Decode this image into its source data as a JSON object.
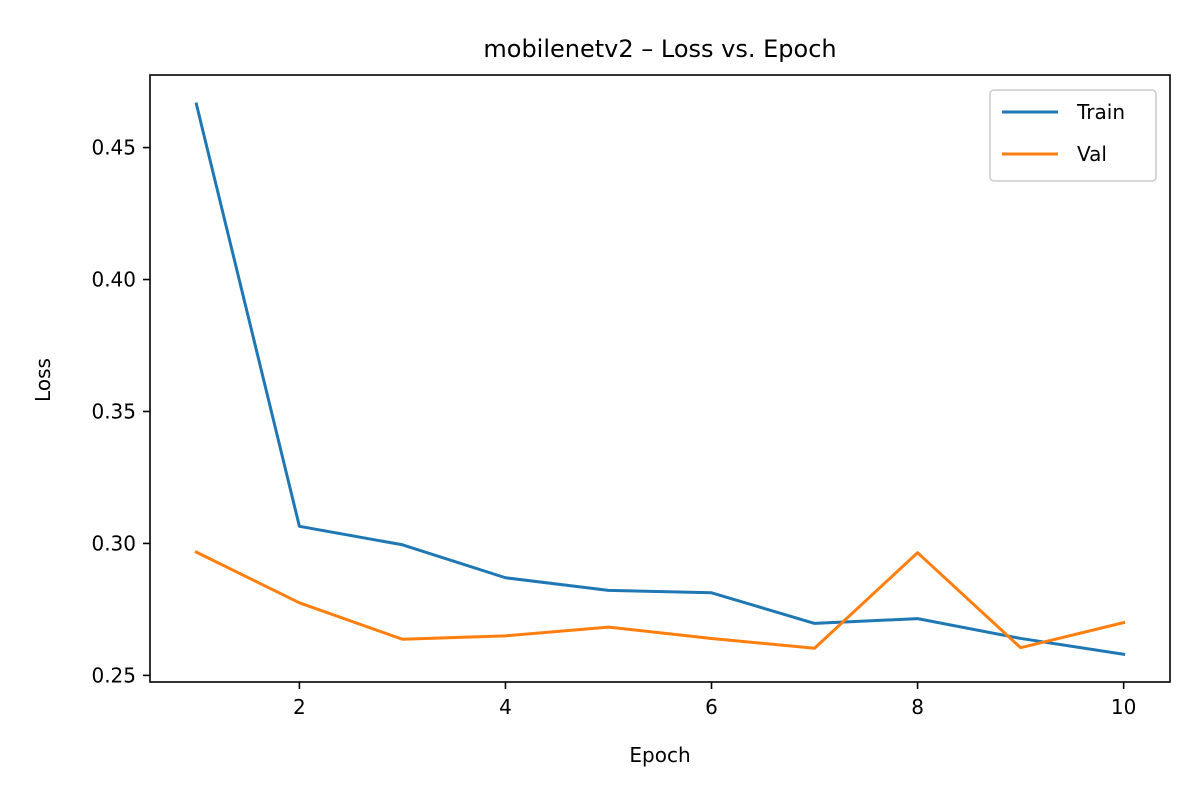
{
  "chart_data": {
    "type": "line",
    "title": "mobilenetv2 – Loss vs. Epoch",
    "xlabel": "Epoch",
    "ylabel": "Loss",
    "x": [
      1,
      2,
      3,
      4,
      5,
      6,
      7,
      8,
      9,
      10
    ],
    "xlim": [
      0.55,
      10.45
    ],
    "ylim": [
      0.2475,
      0.4775
    ],
    "xticks": [
      2,
      4,
      6,
      8,
      10
    ],
    "yticks": [
      0.25,
      0.3,
      0.35,
      0.4,
      0.45
    ],
    "xtick_labels": [
      "2",
      "4",
      "6",
      "8",
      "10"
    ],
    "ytick_labels": [
      "0.25",
      "0.30",
      "0.35",
      "0.40",
      "0.45"
    ],
    "grid": false,
    "legend_position": "top-right",
    "series": [
      {
        "name": "Train",
        "color": "#1f77b4",
        "values": [
          0.4665,
          0.3065,
          0.2995,
          0.287,
          0.2822,
          0.2813,
          0.2697,
          0.2715,
          0.264,
          0.258
        ]
      },
      {
        "name": "Val",
        "color": "#ff7f0e",
        "values": [
          0.2967,
          0.2775,
          0.2637,
          0.265,
          0.2683,
          0.264,
          0.2603,
          0.2965,
          0.2605,
          0.27
        ]
      }
    ]
  }
}
